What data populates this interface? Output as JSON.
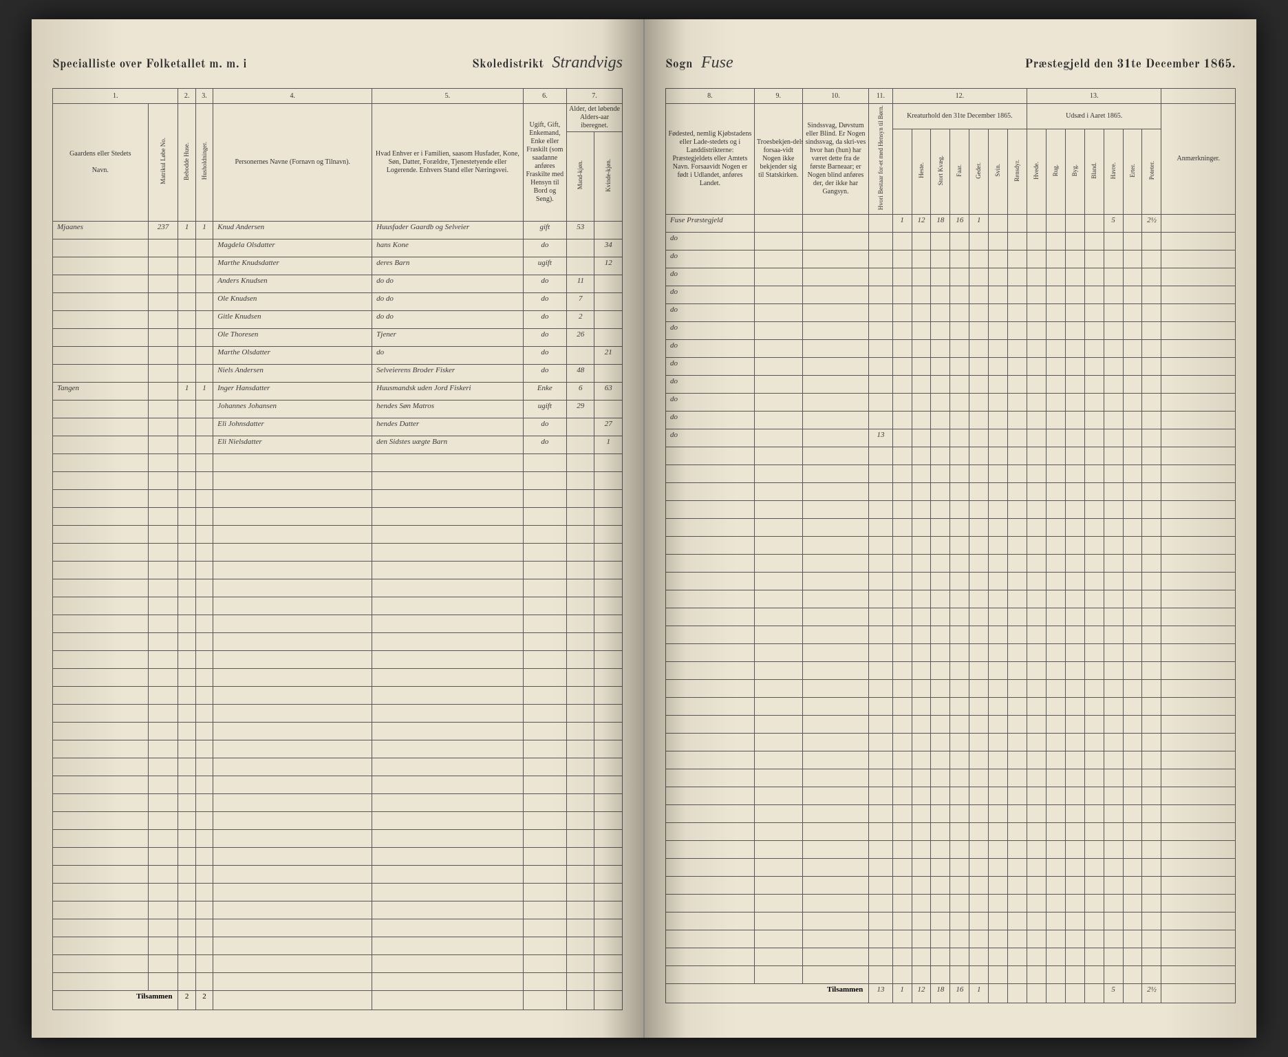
{
  "header": {
    "left_title": "Specialliste over Folketallet m. m. i",
    "skoledistrikt_label": "Skoledistrikt",
    "skoledistrikt_value": "Strandvigs",
    "sogn_label": "Sogn",
    "sogn_value": "Fuse",
    "right_title": "Præstegjeld den 31te December 1865."
  },
  "columns_left": {
    "c1": "1.",
    "c2": "2.",
    "c3": "3.",
    "c4": "4.",
    "c5": "5.",
    "c6": "6.",
    "c7": "7.",
    "h1": "Gaardens eller Stedets",
    "h1b": "Navn.",
    "h1c": "Matrikul Løbe No.",
    "h2": "Bebodde Huse.",
    "h3": "Husholdninger.",
    "h4": "Personernes Navne (Fornavn og Tilnavn).",
    "h5": "Hvad Enhver er i Familien, saasom Husfader, Kone, Søn, Datter, Forældre, Tjenestetyende eller Logerende. Enhvers Stand eller Næringsvei.",
    "h6": "Ugift, Gift, Enkemand, Enke eller Fraskilt (som saadanne anføres Fraskilte med Hensyn til Bord og Seng).",
    "h7a": "Alder, det løbende Alders‑aar iberegnet.",
    "h7b": "Mand‑kjøn.",
    "h7c": "Kvinde‑kjøn."
  },
  "columns_right": {
    "c8": "8.",
    "c9": "9.",
    "c10": "10.",
    "c11": "11.",
    "c12": "12.",
    "c13": "13.",
    "h8": "Fødested, nemlig Kjøbstadens eller Lade‑stedets og i Landdistrikterne: Præstegjeldets eller Amtets Navn. Forsaavidt Nogen er født i Udlandet, anføres Landet.",
    "h9": "Troesbekjen‑delse, forsaa‑vidt Nogen ikke bekjender sig til Statskirken.",
    "h10": "Sindssvag, Døvstum eller Blind. Er Nogen sindssvag, da skri‑ves hvor han (hun) har været dette fra de første Barneaar; er Nogen blind anføres der, der ikke har Gangsyn.",
    "h11": "Hvori Bestaar for‑et med Hensyn til Børn.",
    "h12": "Kreaturhold den 31te December 1865.",
    "h12_sub": [
      "Heste.",
      "Stort Kvæg.",
      "Faar.",
      "Geder.",
      "Svin.",
      "Rensdyr."
    ],
    "h13": "Udsæd i Aaret 1865.",
    "h13_sub": [
      "Hvede.",
      "Rug.",
      "Byg.",
      "Bland.",
      "Havre.",
      "Erter.",
      "Poteter."
    ],
    "h_last": "Anmærkninger."
  },
  "rows": [
    {
      "farm": "Mjaanes",
      "matr": "237",
      "hus": "1",
      "hh": "1",
      "name": "Knud Andersen",
      "occ": "Huusfader Gaardb og Selveier",
      "status": "gift",
      "m": "53",
      "k": "",
      "birthplace": "Fuse Præstegjeld",
      "c11": "",
      "kh": [
        "1",
        "12",
        "18",
        "16",
        "1",
        "",
        ""
      ],
      "ud": [
        "",
        "",
        "",
        "",
        "5",
        "",
        "2½"
      ]
    },
    {
      "farm": "",
      "matr": "",
      "hus": "",
      "hh": "",
      "name": "Magdela Olsdatter",
      "occ": "hans Kone",
      "status": "do",
      "m": "",
      "k": "34",
      "birthplace": "do",
      "c11": "",
      "kh": [
        "",
        "",
        "",
        "",
        "",
        "",
        ""
      ],
      "ud": [
        "",
        "",
        "",
        "",
        "",
        "",
        ""
      ]
    },
    {
      "farm": "",
      "matr": "",
      "hus": "",
      "hh": "",
      "name": "Marthe Knudsdatter",
      "occ": "deres Barn",
      "status": "ugift",
      "m": "",
      "k": "12",
      "birthplace": "do",
      "c11": "",
      "kh": [
        "",
        "",
        "",
        "",
        "",
        "",
        ""
      ],
      "ud": [
        "",
        "",
        "",
        "",
        "",
        "",
        ""
      ]
    },
    {
      "farm": "",
      "matr": "",
      "hus": "",
      "hh": "",
      "name": "Anders Knudsen",
      "occ": "do   do",
      "status": "do",
      "m": "11",
      "k": "",
      "birthplace": "do",
      "c11": "",
      "kh": [
        "",
        "",
        "",
        "",
        "",
        "",
        ""
      ],
      "ud": [
        "",
        "",
        "",
        "",
        "",
        "",
        ""
      ]
    },
    {
      "farm": "",
      "matr": "",
      "hus": "",
      "hh": "",
      "name": "Ole Knudsen",
      "occ": "do   do",
      "status": "do",
      "m": "7",
      "k": "",
      "birthplace": "do",
      "c11": "",
      "kh": [
        "",
        "",
        "",
        "",
        "",
        "",
        ""
      ],
      "ud": [
        "",
        "",
        "",
        "",
        "",
        "",
        ""
      ]
    },
    {
      "farm": "",
      "matr": "",
      "hus": "",
      "hh": "",
      "name": "Gitle Knudsen",
      "occ": "do   do",
      "status": "do",
      "m": "2",
      "k": "",
      "birthplace": "do",
      "c11": "",
      "kh": [
        "",
        "",
        "",
        "",
        "",
        "",
        ""
      ],
      "ud": [
        "",
        "",
        "",
        "",
        "",
        "",
        ""
      ]
    },
    {
      "farm": "",
      "matr": "",
      "hus": "",
      "hh": "",
      "name": "Ole Thoresen",
      "occ": "Tjener",
      "status": "do",
      "m": "26",
      "k": "",
      "birthplace": "do",
      "c11": "",
      "kh": [
        "",
        "",
        "",
        "",
        "",
        "",
        ""
      ],
      "ud": [
        "",
        "",
        "",
        "",
        "",
        "",
        ""
      ]
    },
    {
      "farm": "",
      "matr": "",
      "hus": "",
      "hh": "",
      "name": "Marthe Olsdatter",
      "occ": "do",
      "status": "do",
      "m": "",
      "k": "21",
      "birthplace": "do",
      "c11": "",
      "kh": [
        "",
        "",
        "",
        "",
        "",
        "",
        ""
      ],
      "ud": [
        "",
        "",
        "",
        "",
        "",
        "",
        ""
      ]
    },
    {
      "farm": "",
      "matr": "",
      "hus": "",
      "hh": "",
      "name": "Niels Andersen",
      "occ": "Selveierens Broder Fisker",
      "status": "do",
      "m": "48",
      "k": "",
      "birthplace": "do",
      "c11": "",
      "kh": [
        "",
        "",
        "",
        "",
        "",
        "",
        ""
      ],
      "ud": [
        "",
        "",
        "",
        "",
        "",
        "",
        ""
      ]
    },
    {
      "farm": "Tangen",
      "matr": "",
      "hus": "1",
      "hh": "1",
      "name": "Inger Hansdatter",
      "occ": "Huusmandsk uden Jord Fiskeri",
      "status": "Enke",
      "m": "6",
      "k": "63",
      "birthplace": "do",
      "c11": "",
      "kh": [
        "",
        "",
        "",
        "",
        "",
        "",
        ""
      ],
      "ud": [
        "",
        "",
        "",
        "",
        "",
        "",
        ""
      ]
    },
    {
      "farm": "",
      "matr": "",
      "hus": "",
      "hh": "",
      "name": "Johannes Johansen",
      "occ": "hendes Søn Matros",
      "status": "ugift",
      "m": "29",
      "k": "",
      "birthplace": "do",
      "c11": "",
      "kh": [
        "",
        "",
        "",
        "",
        "",
        "",
        ""
      ],
      "ud": [
        "",
        "",
        "",
        "",
        "",
        "",
        ""
      ]
    },
    {
      "farm": "",
      "matr": "",
      "hus": "",
      "hh": "",
      "name": "Eli Johnsdatter",
      "occ": "hendes Datter",
      "status": "do",
      "m": "",
      "k": "27",
      "birthplace": "do",
      "c11": "",
      "kh": [
        "",
        "",
        "",
        "",
        "",
        "",
        ""
      ],
      "ud": [
        "",
        "",
        "",
        "",
        "",
        "",
        ""
      ]
    },
    {
      "farm": "",
      "matr": "",
      "hus": "",
      "hh": "",
      "name": "Eli Nielsdatter",
      "occ": "den Sidstes uægte Barn",
      "status": "do",
      "m": "",
      "k": "1",
      "birthplace": "do",
      "c11": "13",
      "kh": [
        "",
        "",
        "",
        "",
        "",
        "",
        ""
      ],
      "ud": [
        "",
        "",
        "",
        "",
        "",
        "",
        ""
      ]
    }
  ],
  "empty_rows": 30,
  "totals": {
    "label": "Tilsammen",
    "hus": "2",
    "hh": "2",
    "c11": "13",
    "kh": [
      "1",
      "12",
      "18",
      "16",
      "1",
      "",
      ""
    ],
    "ud": [
      "",
      "",
      "",
      "",
      "5",
      "",
      "2½"
    ]
  },
  "colors": {
    "page_bg": "#ece5d4",
    "border": "#555555",
    "text": "#2a2a2a",
    "script": "#3a3a3a"
  }
}
